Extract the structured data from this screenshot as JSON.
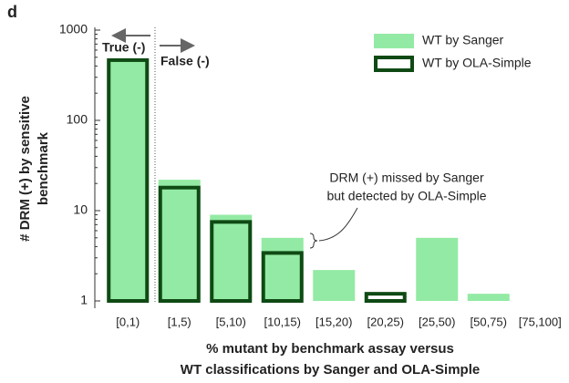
{
  "chart_data": {
    "type": "bar",
    "panel_label": "d",
    "ylabel": [
      "# DRM (+) by sensitive",
      "benchmark"
    ],
    "xlabel": [
      "% mutant by benchmark assay versus",
      "WT classifications by Sanger and OLA-Simple"
    ],
    "categories": [
      "[0,1)",
      "[1,5)",
      "[5,10)",
      "[10,15)",
      "[15,20)",
      "[20,25)",
      "[25,50)",
      "[50,75)",
      "[75,100]"
    ],
    "series": [
      {
        "name": "WT by Sanger",
        "color": "#93eaa4",
        "style": "filled",
        "values": [
          465,
          22,
          9,
          5,
          2.2,
          null,
          5,
          1.2,
          null
        ]
      },
      {
        "name": "WT by OLA-Simple",
        "color": "#0f4a14",
        "style": "outline",
        "values": [
          465,
          18,
          7.5,
          3.4,
          null,
          1.2,
          null,
          null,
          null
        ]
      }
    ],
    "ylim": [
      1,
      1000
    ],
    "yticks": [
      1,
      10,
      100,
      1000
    ],
    "log_scale": true,
    "legend": "upper right",
    "annotations": {
      "true_label": "True (-)",
      "false_label": "False (-)",
      "note": [
        "DRM (+) missed by Sanger",
        "but detected by OLA-Simple"
      ]
    }
  }
}
